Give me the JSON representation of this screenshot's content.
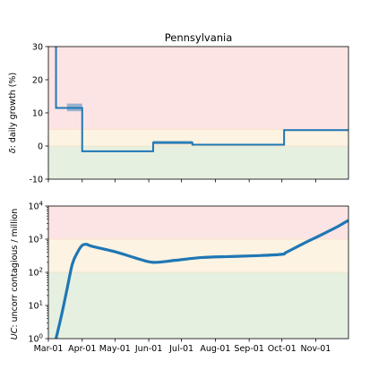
{
  "chart_data": [
    {
      "type": "line",
      "title": "Pennsylvania",
      "ylabel": "δ: daily growth (%)",
      "ylim": [
        -10,
        30
      ],
      "yticks": [
        -10,
        0,
        10,
        20,
        30
      ],
      "bands": [
        {
          "from": -10,
          "to": 0,
          "color": "#e6f0e1"
        },
        {
          "from": 0,
          "to": 5,
          "color": "#fdf3e2"
        },
        {
          "from": 5,
          "to": 30,
          "color": "#fde4e4"
        }
      ],
      "series": [
        {
          "color": "#1f77b4",
          "x": [
            "2020-03-08",
            "2020-03-08",
            "2020-03-18",
            "2020-03-18",
            "2020-04-01",
            "2020-04-01",
            "2020-06-05",
            "2020-06-05",
            "2020-07-11",
            "2020-07-11",
            "2020-10-03",
            "2020-10-03",
            "2020-12-01"
          ],
          "y": [
            30,
            11.5,
            11.5,
            11.5,
            11.5,
            -1.6,
            -1.6,
            1.0,
            1.0,
            0.4,
            0.4,
            4.8,
            4.8
          ],
          "band_segments": [
            {
              "x": [
                "2020-03-18",
                "2020-04-01"
              ],
              "low": 10.5,
              "high": 12.8
            },
            {
              "x": [
                "2020-06-05",
                "2020-07-11"
              ],
              "low": 0.5,
              "high": 1.6
            }
          ]
        }
      ]
    },
    {
      "type": "line",
      "ylabel": "UC: uncorr contagious / million",
      "yscale": "log",
      "ylim": [
        1,
        10000
      ],
      "ytick_exponents": [
        0,
        1,
        2,
        3,
        4
      ],
      "xticks": [
        "Mar-01",
        "Apr-01",
        "May-01",
        "Jun-01",
        "Jul-01",
        "Aug-01",
        "Sep-01",
        "Oct-01",
        "Nov-01"
      ],
      "xlim": [
        "2020-03-01",
        "2020-12-01"
      ],
      "bands": [
        {
          "from": 1,
          "to": 100,
          "color": "#e6f0e1"
        },
        {
          "from": 100,
          "to": 1000,
          "color": "#fdf3e2"
        },
        {
          "from": 1000,
          "to": 10000,
          "color": "#fde4e4"
        }
      ],
      "series": [
        {
          "color": "#1f77b4",
          "x": [
            "2020-03-08",
            "2020-03-13",
            "2020-03-18",
            "2020-03-23",
            "2020-03-28",
            "2020-04-01",
            "2020-04-05",
            "2020-04-10",
            "2020-05-01",
            "2020-05-20",
            "2020-06-05",
            "2020-06-25",
            "2020-07-20",
            "2020-08-15",
            "2020-09-10",
            "2020-10-01",
            "2020-10-05",
            "2020-10-20",
            "2020-11-05",
            "2020-11-20",
            "2020-12-01"
          ],
          "y": [
            1,
            5,
            30,
            180,
            420,
            650,
            700,
            610,
            420,
            270,
            200,
            230,
            280,
            300,
            320,
            350,
            400,
            720,
            1300,
            2300,
            3700
          ]
        }
      ]
    }
  ]
}
